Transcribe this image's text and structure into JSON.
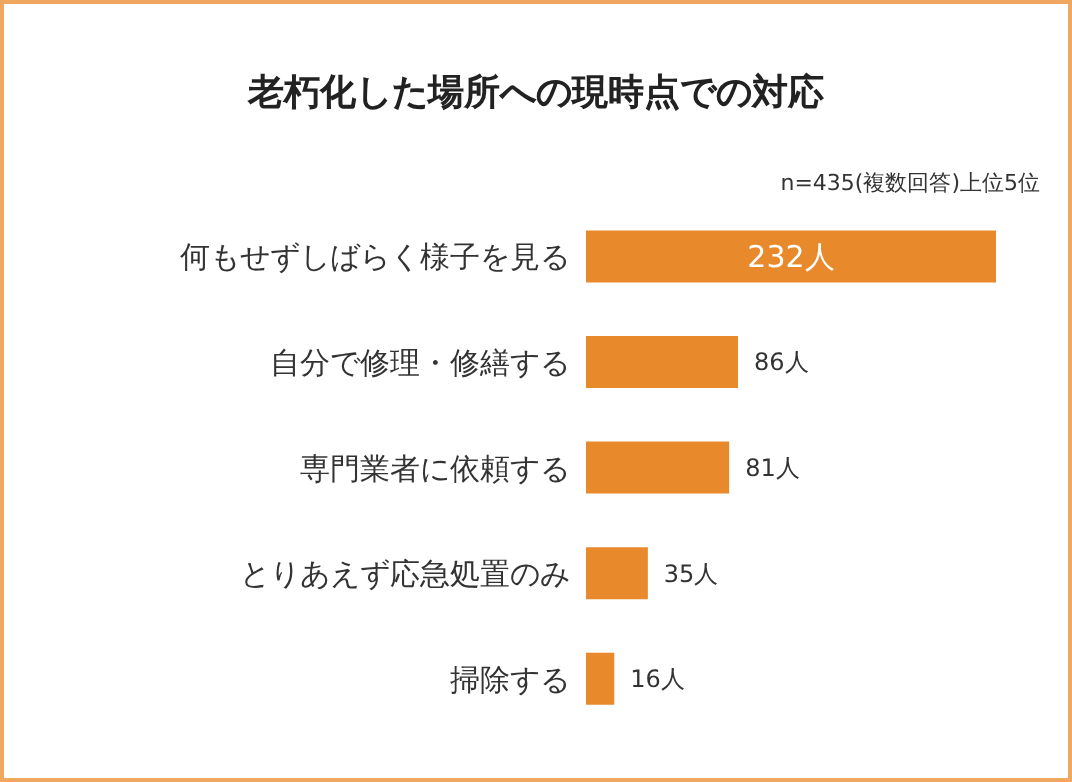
{
  "chart_data": {
    "type": "bar",
    "orientation": "horizontal",
    "title": "老朽化した場所への現時点での対応",
    "subtitle": "n=435(複数回答)上位5位",
    "categories": [
      "何もせずしばらく様子を見る",
      "自分で修理・修繕する",
      "専門業者に依頼する",
      "とりあえず応急処置のみ",
      "掃除する"
    ],
    "values": [
      232,
      86,
      81,
      35,
      16
    ],
    "value_labels": [
      "232人",
      "86人",
      "81人",
      "35人",
      "16人"
    ],
    "color": "#e8892b"
  }
}
